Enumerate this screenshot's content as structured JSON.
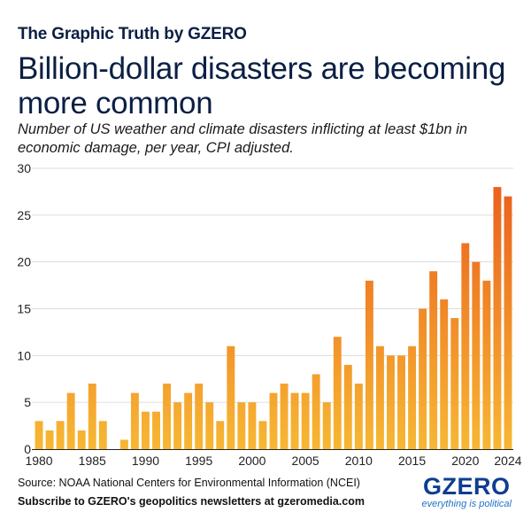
{
  "header": {
    "kicker_prefix": "The Graphic Truth by ",
    "kicker_brand": "GZERO",
    "title": "Billion-dollar disasters are becoming more common",
    "subtitle": "Number of US weather and climate disasters inflicting at least $1bn in economic damage, per year, CPI adjusted."
  },
  "footer": {
    "source": "Source: NOAA National Centers for Environmental Information (NCEI)",
    "cta": "Subscribe to GZERO's geopolitics newsletters at gzeromedia.com",
    "logo_word": "GZERO",
    "logo_tagline": "everything is political"
  },
  "colors": {
    "bar_low": "#f7b733",
    "bar_high": "#ea5a1c",
    "title": "#0b1f44",
    "logo": "#0f3d91",
    "grid": "#dddddd"
  },
  "chart_data": {
    "type": "bar",
    "title": "Billion-dollar disasters are becoming more common",
    "xlabel": "",
    "ylabel": "",
    "x": [
      1980,
      1981,
      1982,
      1983,
      1984,
      1985,
      1986,
      1987,
      1988,
      1989,
      1990,
      1991,
      1992,
      1993,
      1994,
      1995,
      1996,
      1997,
      1998,
      1999,
      2000,
      2001,
      2002,
      2003,
      2004,
      2005,
      2006,
      2007,
      2008,
      2009,
      2010,
      2011,
      2012,
      2013,
      2014,
      2015,
      2016,
      2017,
      2018,
      2019,
      2020,
      2021,
      2022,
      2023,
      2024
    ],
    "values": [
      3,
      2,
      3,
      6,
      2,
      7,
      3,
      0,
      1,
      6,
      4,
      4,
      7,
      5,
      6,
      7,
      5,
      3,
      11,
      5,
      5,
      3,
      6,
      7,
      6,
      6,
      8,
      5,
      12,
      9,
      7,
      18,
      11,
      10,
      10,
      11,
      15,
      19,
      16,
      14,
      22,
      20,
      18,
      28,
      27
    ],
    "x_ticks": [
      "1980",
      "1985",
      "1990",
      "1995",
      "2000",
      "2005",
      "2010",
      "2015",
      "2020",
      "2024"
    ],
    "y_ticks": [
      "0",
      "5",
      "10",
      "15",
      "20",
      "25",
      "30"
    ],
    "ylim": [
      0,
      30
    ],
    "grid": true,
    "legend": "none"
  }
}
